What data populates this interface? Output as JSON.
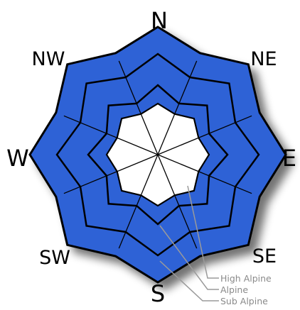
{
  "directions": [
    "N",
    "NE",
    "E",
    "SE",
    "S",
    "SW",
    "W",
    "NW"
  ],
  "zones": [
    "Sub Alpine",
    "Alpine",
    "High Alpine"
  ],
  "legend": {
    "high_alpine": "High Alpine",
    "alpine": "Alpine",
    "sub_alpine": "Sub Alpine"
  },
  "colors": {
    "zone_fill": "#2f62d6",
    "center_fill": "#ffffff",
    "outline": "#000000",
    "leader": "#9a9a9a",
    "shadow": "#000000"
  }
}
